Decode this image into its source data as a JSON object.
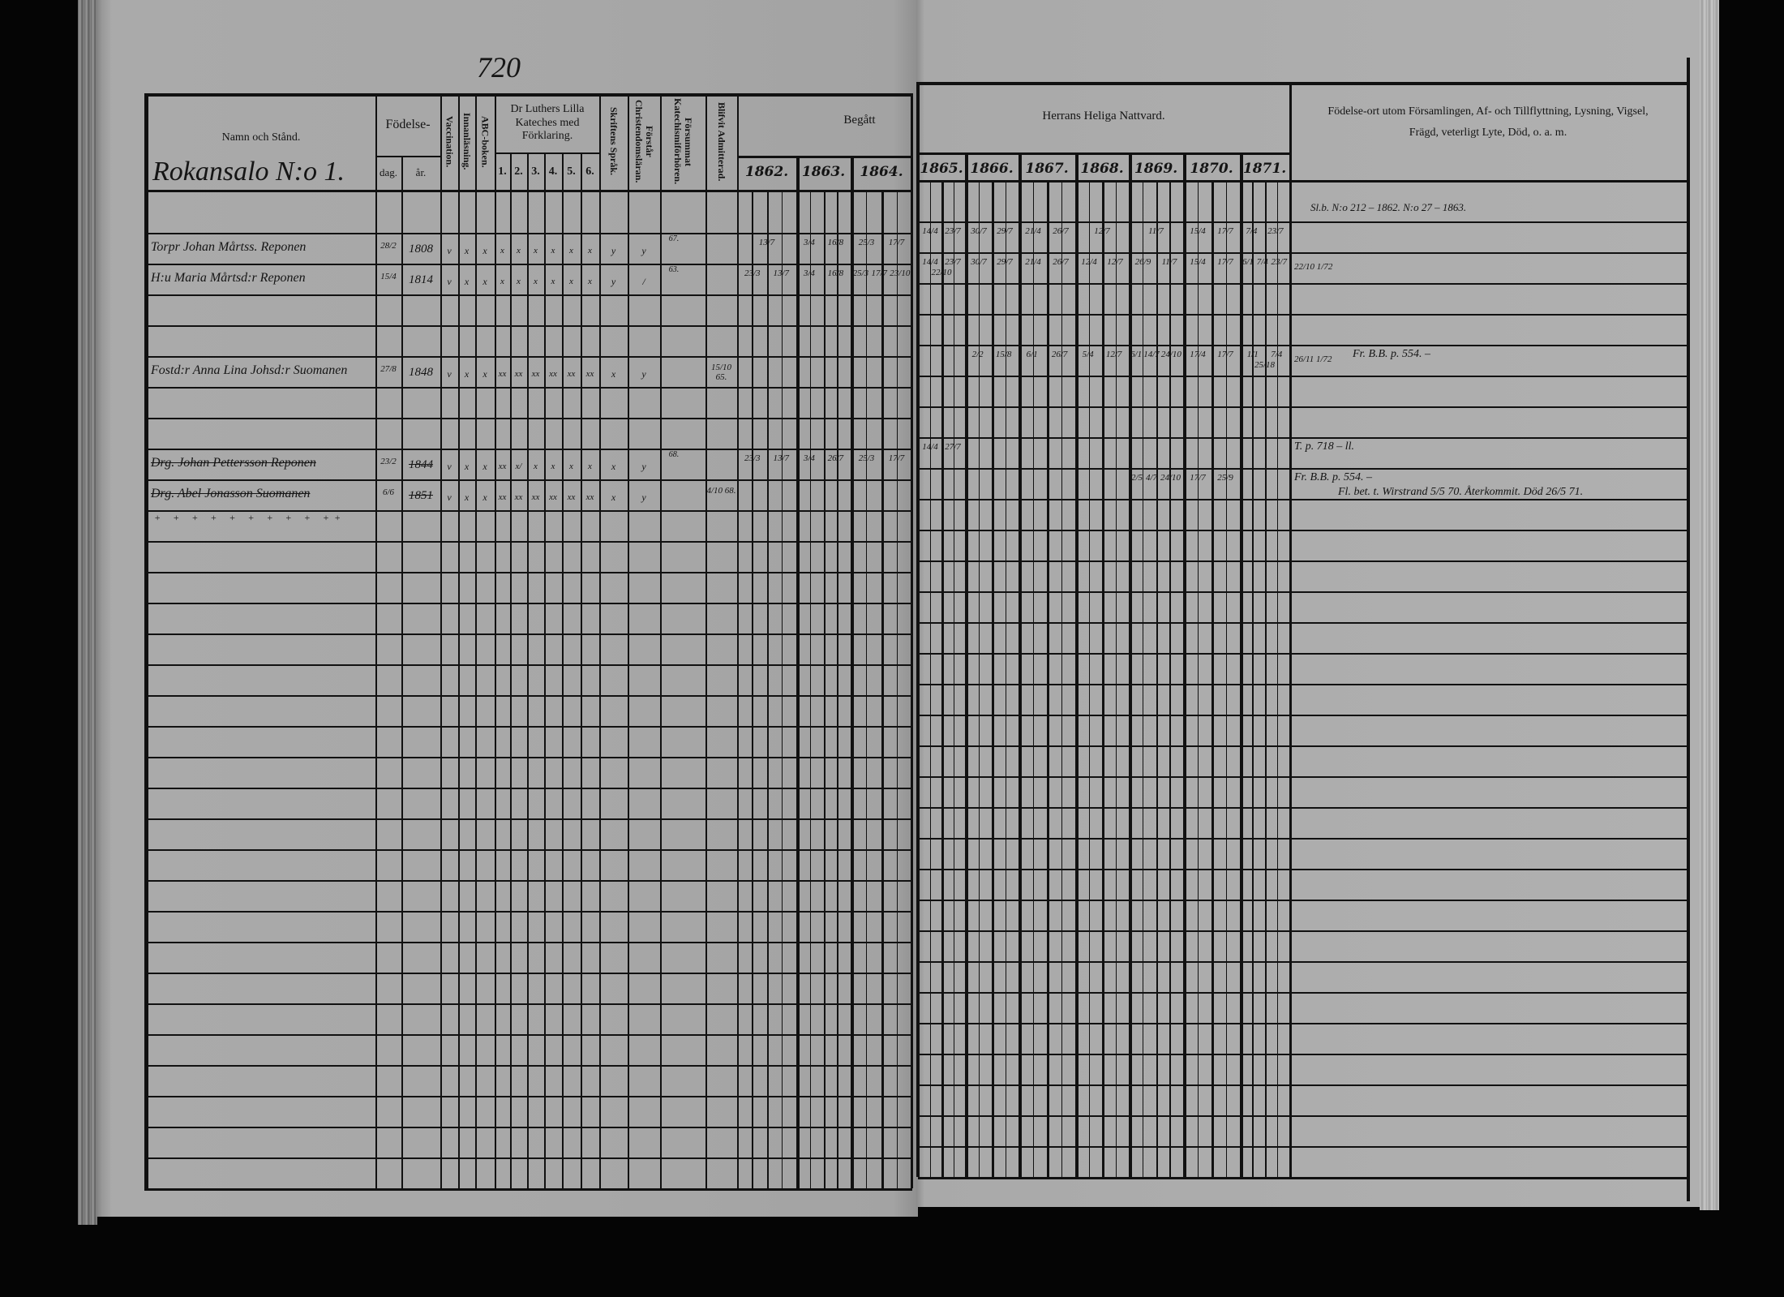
{
  "page_number": "720",
  "header": {
    "name_column": "Namn och Stånd.",
    "village": "Rokansalo N:o 1.",
    "birth": "Födelse-",
    "birth_day": "dag.",
    "birth_year": "år.",
    "vaccination": "Vaccination.",
    "reading": "Innanläsning.",
    "abc_book": "ABC-boken.",
    "catechism": "Dr Luthers Lilla Kateches med Förklaring.",
    "catechism_parts": [
      "1.",
      "2.",
      "3.",
      "4.",
      "5.",
      "6."
    ],
    "scripture": "Skriftens Språk.",
    "christianity": "Förstår Christendomsläran.",
    "missed_hearings": "Försummat Katechismiförhören.",
    "admitted": "Blifvit Admitterad.",
    "taken": "Begått",
    "communion": "Herrans Heliga Nattvard.",
    "years": [
      "1862.",
      "1863.",
      "1864.",
      "1865.",
      "1866.",
      "1867.",
      "1868.",
      "1869.",
      "1870.",
      "1871."
    ],
    "remarks_line1": "Födelse-ort utom Församlingen, Af- och Tillflyttning, Lysning, Vigsel,",
    "remarks_line2": "Frägd, veterligt Lyte, Död, o. a. m."
  },
  "top_remark": "Sl.b. N:o 212 – 1862. N:o 27 – 1863.",
  "entries": [
    {
      "name": "Torpr Johan Mårtss. Reponen",
      "struck": false,
      "day": "28/2",
      "year": "1808",
      "vaccination": "v",
      "reading": "x",
      "abc": "x",
      "catechism": [
        "x",
        "x",
        "x",
        "x",
        "x",
        "x"
      ],
      "scripture": "y",
      "christianity": "y",
      "missed": "67.",
      "admitted": "",
      "communion": [
        [
          "13/7"
        ],
        [
          "3/4",
          "16/8"
        ],
        [
          "25/3",
          "17/7"
        ],
        [
          "14/4",
          "23/7"
        ],
        [
          "30/7",
          "29/7"
        ],
        [
          "21/4",
          "26/7"
        ],
        [
          "12/7"
        ],
        [
          "11/7"
        ],
        [
          "15/4",
          "17/7"
        ],
        [
          "7/4",
          "23/7"
        ]
      ],
      "remark_dates": "",
      "remarks": []
    },
    {
      "name": "H:u Maria Mårtsd:r Reponen",
      "struck": false,
      "day": "15/4",
      "year": "1814",
      "vaccination": "v",
      "reading": "x",
      "abc": "x",
      "catechism": [
        "x",
        "x",
        "x",
        "x",
        "x",
        "x"
      ],
      "scripture": "y",
      "christianity": "/",
      "missed": "63.",
      "admitted": "",
      "communion": [
        [
          "23/3",
          "13/7"
        ],
        [
          "3/4",
          "16/8"
        ],
        [
          "25/3",
          "17/7",
          "23/10"
        ],
        [
          "14/4",
          "23/7",
          "22/10"
        ],
        [
          "30/7",
          "29/7"
        ],
        [
          "21/4",
          "26/7"
        ],
        [
          "12/4",
          "12/7"
        ],
        [
          "26/9",
          "11/7"
        ],
        [
          "15/4",
          "17/7"
        ],
        [
          "6/1",
          "7/4",
          "23/7"
        ]
      ],
      "remark_dates": "22/10 1/72",
      "remarks": []
    },
    {
      "name": "Fostd:r Anna Lina Johsd:r Suomanen",
      "struck": false,
      "day": "27/8",
      "year": "1848",
      "vaccination": "v",
      "reading": "x",
      "abc": "x",
      "catechism": [
        "xx",
        "xx",
        "xx",
        "xx",
        "xx",
        "xx"
      ],
      "scripture": "x",
      "christianity": "y",
      "missed": "",
      "admitted": "15/10 65.",
      "communion": [
        [],
        [],
        [],
        [],
        [
          "2/2",
          "15/8"
        ],
        [
          "6/1",
          "26/7"
        ],
        [
          "5/4",
          "12/7"
        ],
        [
          "6/1",
          "14/7",
          "24/10"
        ],
        [
          "17/4",
          "17/7"
        ],
        [
          "1/1",
          "7/4",
          "25/18"
        ]
      ],
      "remark_dates": "26/11 1/72",
      "remarks": [
        "Fr. B.B. p. 554. –"
      ]
    },
    {
      "name": "Drg. Johan Pettersson Reponen",
      "struck": true,
      "day": "23/2",
      "year": "1844",
      "vaccination": "v",
      "reading": "x",
      "abc": "x",
      "catechism": [
        "xx",
        "x/",
        "x",
        "x",
        "x",
        "x"
      ],
      "scripture": "x",
      "christianity": "y",
      "missed": "68.",
      "admitted": "",
      "communion": [
        [
          "23/3",
          "13/7"
        ],
        [
          "3/4",
          "26/7"
        ],
        [
          "25/3",
          "17/7"
        ],
        [
          "14/4",
          "27/7"
        ],
        [],
        [],
        [],
        [],
        [],
        []
      ],
      "remark_dates": "",
      "remarks": [
        "T. p. 718 – ll."
      ]
    },
    {
      "name": "Drg. Abel Jonasson Suomanen",
      "struck": true,
      "day": "6/6",
      "year": "1851",
      "vaccination": "v",
      "reading": "x",
      "abc": "x",
      "catechism": [
        "xx",
        "xx",
        "xx",
        "xx",
        "xx",
        "xx"
      ],
      "scripture": "x",
      "christianity": "y",
      "missed": "",
      "admitted": "4/10 68.",
      "communion": [
        [],
        [],
        [],
        [],
        [],
        [],
        [],
        [
          "2/5",
          "4/7",
          "24/10"
        ],
        [
          "17/7",
          "25/9"
        ],
        []
      ],
      "remark_dates": "",
      "remarks": [
        "Fr. B.B. p. 554. –",
        "Fl. bet. t. Wirstrand 5/5 70. Återkommit. Död 26/5 71."
      ]
    }
  ]
}
